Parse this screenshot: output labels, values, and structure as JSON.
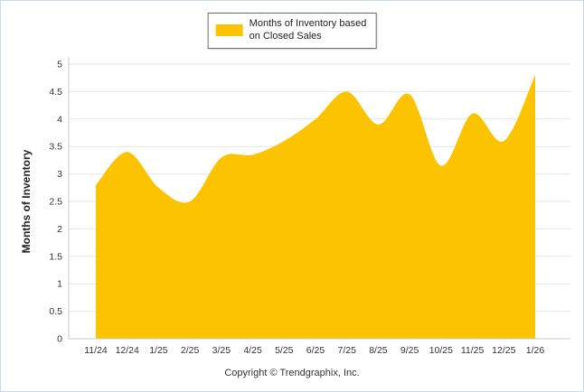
{
  "legend": {
    "lines": [
      "Months of Inventory based",
      "on Closed Sales"
    ]
  },
  "footer": {
    "copyright": "Copyright © Trendgraphix, Inc."
  },
  "chart_data": {
    "type": "area",
    "x": [
      "11/24",
      "12/24",
      "1/25",
      "2/25",
      "3/25",
      "4/25",
      "5/25",
      "6/25",
      "7/25",
      "8/25",
      "9/25",
      "10/25",
      "11/25",
      "12/25",
      "1/26"
    ],
    "values": [
      2.8,
      3.4,
      2.75,
      2.5,
      3.3,
      3.35,
      3.6,
      4.0,
      4.5,
      3.9,
      4.45,
      3.15,
      4.1,
      3.6,
      4.8
    ],
    "title": "",
    "xlabel": "",
    "ylabel": "Months of Inventory",
    "ylim": [
      0,
      5
    ],
    "ytick_step": 0.5,
    "grid": true,
    "legend_label": "Months of Inventory based on Closed Sales",
    "legend_position": "top-center",
    "area_color": "#FCC300",
    "grid_color": "#e4e4e4",
    "axis_color": "#c8c8c8",
    "tick_label_color": "#333333"
  }
}
